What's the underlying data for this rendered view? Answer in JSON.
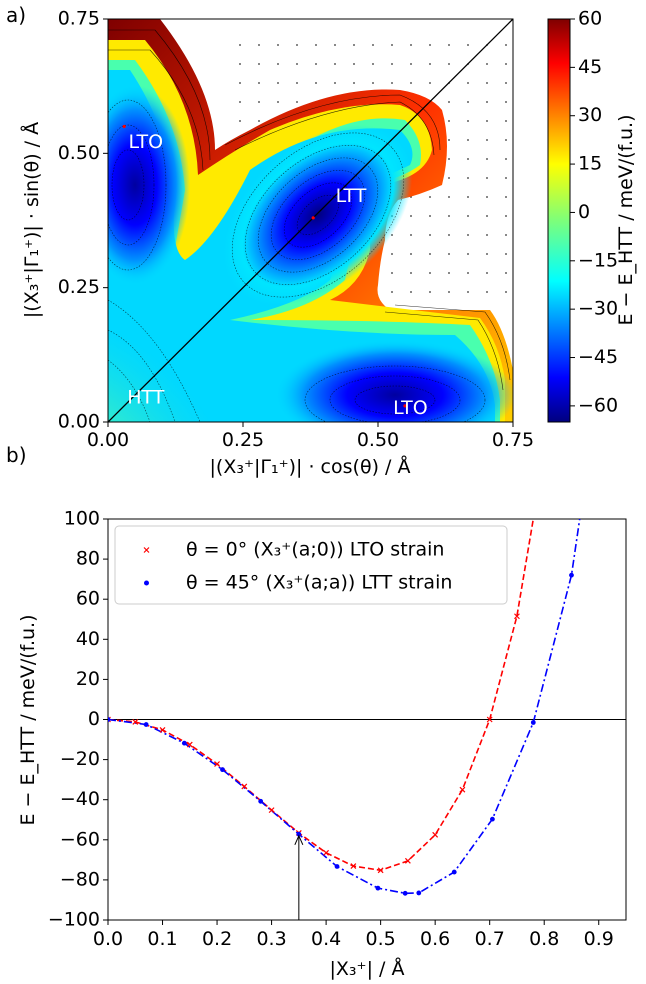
{
  "chart_data": [
    {
      "panel_label": "a)",
      "type": "heatmap",
      "xlabel": "|(X₃⁺|Γ₁⁺)| · cos(θ) / Å",
      "ylabel": "|(X₃⁺|Γ₁⁺)| · sin(θ) / Å",
      "xlim": [
        0,
        0.75
      ],
      "ylim": [
        0,
        0.75
      ],
      "xticks": [
        "0.00",
        "0.25",
        "0.50",
        "0.75"
      ],
      "yticks": [
        "0.00",
        "0.25",
        "0.50",
        "0.75"
      ],
      "colorbar": {
        "label": "E − E_HTT / meV/(f.u.)",
        "min": -65,
        "max": 60,
        "ticks": [
          "60",
          "45",
          "30",
          "15",
          "0",
          "−15",
          "−30",
          "−45",
          "−60"
        ],
        "colormap": "jet"
      },
      "annotations": [
        {
          "text": "LTO",
          "x": 0.07,
          "y": 0.52
        },
        {
          "text": "LTT",
          "x": 0.45,
          "y": 0.42
        },
        {
          "text": "HTT",
          "x": 0.07,
          "y": 0.045
        },
        {
          "text": "LTO",
          "x": 0.56,
          "y": 0.025
        }
      ],
      "diagonal_line": true,
      "minima": [
        {
          "label": "LTT",
          "x": 0.38,
          "y": 0.38,
          "value": -70
        },
        {
          "label": "LTO",
          "x": 0.55,
          "y": 0.03,
          "value": -65
        },
        {
          "label": "LTO",
          "x": 0.03,
          "y": 0.55,
          "value": -65
        }
      ]
    },
    {
      "panel_label": "b)",
      "type": "line",
      "xlabel": "|X₃⁺| / Å",
      "ylabel": "E − E_HTT / meV/(f.u.)",
      "xlim": [
        0,
        0.95
      ],
      "ylim": [
        -100,
        100
      ],
      "xticks": [
        "0.0",
        "0.1",
        "0.2",
        "0.3",
        "0.4",
        "0.5",
        "0.6",
        "0.7",
        "0.8",
        "0.9"
      ],
      "yticks": [
        "100",
        "80",
        "60",
        "40",
        "20",
        "0",
        "−20",
        "−40",
        "−60",
        "−80",
        "−100"
      ],
      "legend_position": "top-left",
      "arrow": {
        "x": 0.35,
        "y_from": -100,
        "y_to": -58
      },
      "series": [
        {
          "name": "θ = 0° (X₃⁺(a;0)) LTO strain",
          "color": "#ff0000",
          "marker": "x",
          "line_style": "dashed",
          "points": [
            [
              0.0,
              0.0
            ],
            [
              0.05,
              -1.2
            ],
            [
              0.1,
              -5.2
            ],
            [
              0.15,
              -12.5
            ],
            [
              0.2,
              -22.2
            ],
            [
              0.25,
              -33.4
            ],
            [
              0.3,
              -45.2
            ],
            [
              0.35,
              -56.6
            ],
            [
              0.4,
              -66.5
            ],
            [
              0.45,
              -73.1
            ],
            [
              0.5,
              -75.2
            ],
            [
              0.55,
              -70.5
            ],
            [
              0.6,
              -57.5
            ],
            [
              0.65,
              -35.0
            ],
            [
              0.7,
              0.0
            ],
            [
              0.75,
              51.5
            ],
            [
              0.78,
              100.0
            ]
          ]
        },
        {
          "name": "θ = 45° (X₃⁺(a;a)) LTT strain",
          "color": "#0000ff",
          "marker": "dot",
          "line_style": "dashdot",
          "points": [
            [
              0.0,
              0.0
            ],
            [
              0.07,
              -2.5
            ],
            [
              0.14,
              -11.8
            ],
            [
              0.21,
              -25.0
            ],
            [
              0.28,
              -40.8
            ],
            [
              0.35,
              -57.2
            ],
            [
              0.42,
              -73.3
            ],
            [
              0.495,
              -84.1
            ],
            [
              0.545,
              -86.7
            ],
            [
              0.57,
              -86.5
            ],
            [
              0.635,
              -76.1
            ],
            [
              0.705,
              -49.7
            ],
            [
              0.78,
              -1.5
            ],
            [
              0.85,
              72.0
            ],
            [
              0.865,
              100.0
            ]
          ]
        }
      ]
    }
  ]
}
